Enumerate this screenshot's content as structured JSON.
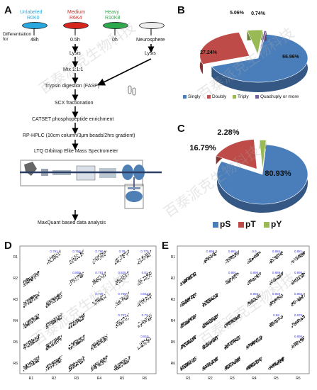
{
  "panels": {
    "A": "A",
    "B": "B",
    "C": "C",
    "D": "D",
    "E": "E"
  },
  "panel_a": {
    "labels": [
      {
        "name": "Unlabeled",
        "sub": "R0K0",
        "color": "#29a8df"
      },
      {
        "name": "Medium",
        "sub": "R6K4",
        "color": "#d7261e"
      },
      {
        "name": "Heavy",
        "sub": "R10K8",
        "color": "#2da84a"
      }
    ],
    "differentiation_label": "Differentiation\nfor",
    "times": [
      "48h",
      "0.5h",
      "0h"
    ],
    "neurosphere": "Neurosphere",
    "steps": [
      "Lysis",
      "Mix 1:1:1",
      "Trypsin digestion (FASP)",
      "SCX fractionation",
      "CATSET phosphopeptide enrichment",
      "RP-HPLC (10cm column/3μm beads/2hrs gradient)",
      "LTQ Orbitrap Elite Mass Spectrometer",
      "MaxQuant based data analysis"
    ],
    "lysis_right": "Lysis"
  },
  "chart_data": [
    {
      "type": "pie",
      "panel": "B",
      "categories": [
        "Singly",
        "Doubly",
        "Triply",
        "Quadruply or more"
      ],
      "values": [
        66.96,
        27.24,
        5.06,
        0.74
      ],
      "labels": [
        "66.96%",
        "27.24%",
        "5.06%",
        "0.74%"
      ],
      "colors": [
        "#4a7ebb",
        "#be4b48",
        "#98b954",
        "#7d60a0"
      ],
      "legend": "bottom"
    },
    {
      "type": "pie",
      "panel": "C",
      "categories": [
        "pS",
        "pT",
        "pY"
      ],
      "values": [
        80.93,
        16.79,
        2.28
      ],
      "labels": [
        "80.93%",
        "16.79%",
        "2.28%"
      ],
      "colors": [
        "#4a7ebb",
        "#be4b48",
        "#98b954"
      ],
      "legend": "bottom"
    },
    {
      "type": "scatter",
      "panel": "D",
      "row_labels": [
        "R1",
        "R2",
        "R3",
        "R4",
        "R5",
        "R6"
      ],
      "col_labels": [
        "R1",
        "R2",
        "R3",
        "R4",
        "R5",
        "R6"
      ],
      "correlations": [
        {
          "row": 0,
          "col": 1,
          "r": "0.791"
        },
        {
          "row": 0,
          "col": 2,
          "r": "0.769"
        },
        {
          "row": 0,
          "col": 3,
          "r": "0.796"
        },
        {
          "row": 0,
          "col": 4,
          "r": "0.78"
        },
        {
          "row": 0,
          "col": 5,
          "r": "0.776"
        },
        {
          "row": 1,
          "col": 2,
          "r": "0.809"
        },
        {
          "row": 1,
          "col": 3,
          "r": "0.781"
        },
        {
          "row": 1,
          "col": 4,
          "r": "0.825"
        },
        {
          "row": 1,
          "col": 5,
          "r": "0.81"
        },
        {
          "row": 2,
          "col": 3,
          "r": "0.739"
        },
        {
          "row": 2,
          "col": 4,
          "r": "0.796"
        },
        {
          "row": 2,
          "col": 5,
          "r": "0.814"
        },
        {
          "row": 3,
          "col": 4,
          "r": "0.757"
        },
        {
          "row": 3,
          "col": 5,
          "r": "0.73"
        },
        {
          "row": 4,
          "col": 5,
          "r": "0.815"
        }
      ]
    },
    {
      "type": "scatter",
      "panel": "E",
      "row_labels": [
        "R1",
        "R2",
        "R3",
        "R4",
        "R5",
        "R6"
      ],
      "col_labels": [
        "R1",
        "R2",
        "R3",
        "R4",
        "R5",
        "R6"
      ],
      "correlations": [
        {
          "row": 0,
          "col": 1,
          "r": "0.899"
        },
        {
          "row": 0,
          "col": 2,
          "r": "0.881"
        },
        {
          "row": 0,
          "col": 3,
          "r": "0.9"
        },
        {
          "row": 0,
          "col": 4,
          "r": "0.884"
        },
        {
          "row": 0,
          "col": 5,
          "r": "0.881"
        },
        {
          "row": 1,
          "col": 2,
          "r": "0.891"
        },
        {
          "row": 1,
          "col": 3,
          "r": "0.896"
        },
        {
          "row": 1,
          "col": 4,
          "r": "0.889"
        },
        {
          "row": 1,
          "col": 5,
          "r": "0.895"
        },
        {
          "row": 2,
          "col": 3,
          "r": "0.893"
        },
        {
          "row": 2,
          "col": 4,
          "r": "0.889"
        },
        {
          "row": 2,
          "col": 5,
          "r": "0.882"
        },
        {
          "row": 3,
          "col": 4,
          "r": "0.88"
        },
        {
          "row": 3,
          "col": 5,
          "r": "0.876"
        },
        {
          "row": 4,
          "col": 5,
          "r": "0.896"
        }
      ]
    }
  ],
  "watermark": "百泰派克生物科技"
}
